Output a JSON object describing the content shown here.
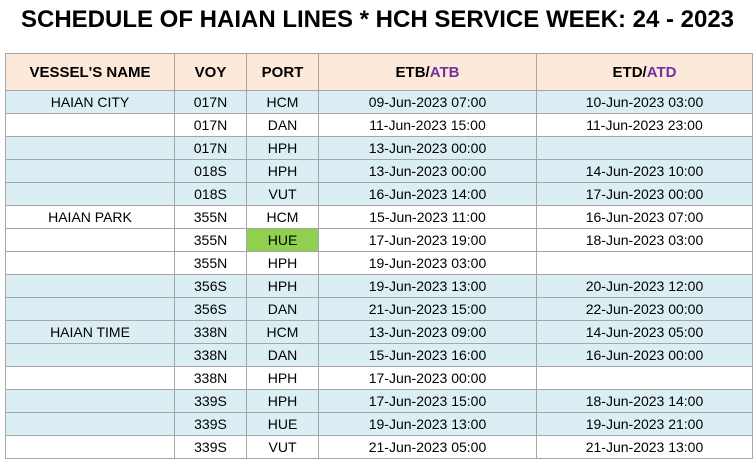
{
  "header": {
    "title": "SCHEDULE OF HAIAN LINES * HCH SERVICE WEEK: 24 - 2023"
  },
  "table": {
    "columns": {
      "vessel": "VESSEL'S NAME",
      "voy": "VOY",
      "port": "PORT",
      "etb": {
        "main": "ETB/",
        "alt": "ATB"
      },
      "etd": {
        "main": "ETD/",
        "alt": "ATD"
      }
    },
    "rows": [
      {
        "vessel": "HAIAN CITY",
        "voy": "017N",
        "port": "HCM",
        "etb": "09-Jun-2023 07:00",
        "etd": "10-Jun-2023 03:00"
      },
      {
        "voy": "017N",
        "port": "DAN",
        "etb": "11-Jun-2023 15:00",
        "etd": "11-Jun-2023 23:00"
      },
      {
        "voy": "017N",
        "port": "HPH",
        "etb": "13-Jun-2023 00:00"
      },
      {
        "voy": "018S",
        "port": "HPH",
        "etb": "13-Jun-2023 00:00",
        "etd": "14-Jun-2023 10:00"
      },
      {
        "voy": "018S",
        "port": "VUT",
        "etb": "16-Jun-2023 14:00",
        "etd": "17-Jun-2023 00:00"
      },
      {
        "vessel": "HAIAN PARK",
        "voy": "355N",
        "port": "HCM",
        "etb": "15-Jun-2023 11:00",
        "etd": "16-Jun-2023 07:00"
      },
      {
        "voy": "355N",
        "port": "HUE",
        "etb": "17-Jun-2023 19:00",
        "etd": "18-Jun-2023 03:00"
      },
      {
        "voy": "355N",
        "port": "HPH",
        "etb": "19-Jun-2023 03:00"
      },
      {
        "voy": "356S",
        "port": "HPH",
        "etb": "19-Jun-2023 13:00",
        "etd": "20-Jun-2023 12:00"
      },
      {
        "voy": "356S",
        "port": "DAN",
        "etb": "21-Jun-2023 15:00",
        "etd": "22-Jun-2023 00:00"
      },
      {
        "vessel": "HAIAN TIME",
        "voy": "338N",
        "port": "HCM",
        "etb": "13-Jun-2023 09:00",
        "etd": "14-Jun-2023 05:00"
      },
      {
        "voy": "338N",
        "port": "DAN",
        "etb": "15-Jun-2023 16:00",
        "etd": "16-Jun-2023 00:00"
      },
      {
        "voy": "338N",
        "port": "HPH",
        "etb": "17-Jun-2023 00:00"
      },
      {
        "voy": "339S",
        "port": "HPH",
        "etb": "17-Jun-2023 15:00",
        "etd": "18-Jun-2023 14:00"
      },
      {
        "voy": "339S",
        "port": "HUE",
        "etb": "19-Jun-2023 13:00",
        "etd": "19-Jun-2023 21:00"
      },
      {
        "voy": "339S",
        "port": "VUT",
        "etb": "21-Jun-2023 05:00",
        "etd": "21-Jun-2023 13:00"
      }
    ]
  }
}
